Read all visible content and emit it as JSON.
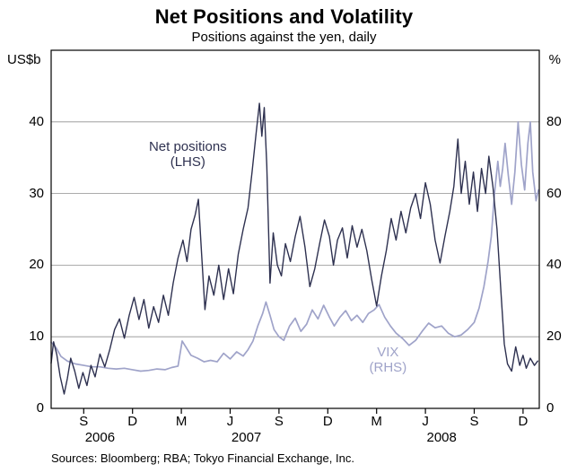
{
  "title": "Net Positions and Volatility",
  "subtitle": "Positions against the yen, daily",
  "sources": "Sources: Bloomberg; RBA; Tokyo Financial Exchange, Inc.",
  "colors": {
    "net_positions": "#2e3150",
    "vix": "#9fa3c9",
    "grid": "#909090",
    "frame": "#000000",
    "text": "#000000"
  },
  "chart_data": {
    "type": "line",
    "title": "Net Positions and Volatility",
    "subtitle": "Positions against the yen, daily",
    "x_axis": {
      "xlim": [
        0,
        30
      ],
      "note": "months since July 2006, daily data",
      "ticks": [
        {
          "x": 2,
          "label": "S"
        },
        {
          "x": 5,
          "label": "D"
        },
        {
          "x": 8,
          "label": "M"
        },
        {
          "x": 11,
          "label": "J"
        },
        {
          "x": 14,
          "label": "S"
        },
        {
          "x": 17,
          "label": "D"
        },
        {
          "x": 20,
          "label": "M"
        },
        {
          "x": 23,
          "label": "J"
        },
        {
          "x": 26,
          "label": "S"
        },
        {
          "x": 29,
          "label": "D"
        }
      ],
      "year_labels": [
        {
          "x": 3,
          "label": "2006"
        },
        {
          "x": 12,
          "label": "2007"
        },
        {
          "x": 24,
          "label": "2008"
        }
      ]
    },
    "left_axis": {
      "unit": "US$b",
      "ticks": [
        0,
        10,
        20,
        30,
        40
      ],
      "max": 50
    },
    "right_axis": {
      "unit": "%",
      "ticks": [
        0,
        20,
        40,
        60,
        80
      ],
      "max": 100
    },
    "gridlines": [
      10,
      20,
      30,
      40
    ],
    "legend_position": "in-plot annotations",
    "annotations": [
      {
        "lines": [
          "Net positions",
          "(LHS)"
        ],
        "x": 8.4,
        "y_left": 35.5,
        "color_key": "net_positions"
      },
      {
        "lines": [
          "VIX",
          "(RHS)"
        ],
        "x": 20.7,
        "y_left": 6.8,
        "color_key": "vix"
      }
    ],
    "series": [
      {
        "name": "Net positions (LHS)",
        "axis": "left",
        "color_key": "net_positions",
        "width": 1.4,
        "points": [
          [
            0,
            6.3
          ],
          [
            0.15,
            9.3
          ],
          [
            0.35,
            7.5
          ],
          [
            0.55,
            4.5
          ],
          [
            0.8,
            2.0
          ],
          [
            1.0,
            4.2
          ],
          [
            1.2,
            7.0
          ],
          [
            1.45,
            5.2
          ],
          [
            1.7,
            2.8
          ],
          [
            1.95,
            5.0
          ],
          [
            2.2,
            3.2
          ],
          [
            2.45,
            6.0
          ],
          [
            2.7,
            4.4
          ],
          [
            3.0,
            7.6
          ],
          [
            3.3,
            5.8
          ],
          [
            3.6,
            8.2
          ],
          [
            3.9,
            11.0
          ],
          [
            4.2,
            12.5
          ],
          [
            4.5,
            9.8
          ],
          [
            4.8,
            13.0
          ],
          [
            5.1,
            15.5
          ],
          [
            5.4,
            12.4
          ],
          [
            5.7,
            15.2
          ],
          [
            6.0,
            11.2
          ],
          [
            6.3,
            14.2
          ],
          [
            6.6,
            12.0
          ],
          [
            6.9,
            15.8
          ],
          [
            7.2,
            13.0
          ],
          [
            7.5,
            17.5
          ],
          [
            7.8,
            21.0
          ],
          [
            8.1,
            23.5
          ],
          [
            8.35,
            20.5
          ],
          [
            8.6,
            25.0
          ],
          [
            8.85,
            27.0
          ],
          [
            9.05,
            29.2
          ],
          [
            9.25,
            21.5
          ],
          [
            9.45,
            13.8
          ],
          [
            9.7,
            18.5
          ],
          [
            10.0,
            15.8
          ],
          [
            10.3,
            20.0
          ],
          [
            10.6,
            15.2
          ],
          [
            10.9,
            19.5
          ],
          [
            11.2,
            16.0
          ],
          [
            11.5,
            21.5
          ],
          [
            11.8,
            25.0
          ],
          [
            12.1,
            28.0
          ],
          [
            12.35,
            33.0
          ],
          [
            12.6,
            38.5
          ],
          [
            12.8,
            42.6
          ],
          [
            12.95,
            38.0
          ],
          [
            13.1,
            42.0
          ],
          [
            13.25,
            34.0
          ],
          [
            13.45,
            17.5
          ],
          [
            13.65,
            24.5
          ],
          [
            13.9,
            20.0
          ],
          [
            14.15,
            18.5
          ],
          [
            14.4,
            23.0
          ],
          [
            14.7,
            20.5
          ],
          [
            15.0,
            24.0
          ],
          [
            15.3,
            26.8
          ],
          [
            15.6,
            22.5
          ],
          [
            15.9,
            17.0
          ],
          [
            16.2,
            19.5
          ],
          [
            16.5,
            23.0
          ],
          [
            16.8,
            26.3
          ],
          [
            17.1,
            24.0
          ],
          [
            17.35,
            20.0
          ],
          [
            17.6,
            23.5
          ],
          [
            17.9,
            25.2
          ],
          [
            18.2,
            21.0
          ],
          [
            18.5,
            25.5
          ],
          [
            18.8,
            22.5
          ],
          [
            19.1,
            25.0
          ],
          [
            19.4,
            22.0
          ],
          [
            19.7,
            18.0
          ],
          [
            20.0,
            14.3
          ],
          [
            20.3,
            18.5
          ],
          [
            20.6,
            22.0
          ],
          [
            20.9,
            26.5
          ],
          [
            21.2,
            23.5
          ],
          [
            21.5,
            27.5
          ],
          [
            21.8,
            24.5
          ],
          [
            22.1,
            28.0
          ],
          [
            22.4,
            30.0
          ],
          [
            22.7,
            26.5
          ],
          [
            23.0,
            31.5
          ],
          [
            23.3,
            28.5
          ],
          [
            23.6,
            23.5
          ],
          [
            23.9,
            20.3
          ],
          [
            24.2,
            24.0
          ],
          [
            24.5,
            27.5
          ],
          [
            24.75,
            31.0
          ],
          [
            25.0,
            37.6
          ],
          [
            25.2,
            30.0
          ],
          [
            25.45,
            34.5
          ],
          [
            25.7,
            28.5
          ],
          [
            25.95,
            33.0
          ],
          [
            26.2,
            27.5
          ],
          [
            26.45,
            33.5
          ],
          [
            26.7,
            30.0
          ],
          [
            26.9,
            35.2
          ],
          [
            27.15,
            31.0
          ],
          [
            27.4,
            25.0
          ],
          [
            27.65,
            16.0
          ],
          [
            27.85,
            9.0
          ],
          [
            28.05,
            6.2
          ],
          [
            28.3,
            5.2
          ],
          [
            28.55,
            8.6
          ],
          [
            28.8,
            6.0
          ],
          [
            29.0,
            7.4
          ],
          [
            29.2,
            5.6
          ],
          [
            29.45,
            7.0
          ],
          [
            29.7,
            6.0
          ],
          [
            29.9,
            6.6
          ]
        ]
      },
      {
        "name": "VIX (RHS)",
        "axis": "right",
        "color_key": "vix",
        "width": 1.7,
        "points": [
          [
            0,
            18.5
          ],
          [
            0.3,
            17.0
          ],
          [
            0.6,
            14.5
          ],
          [
            1.0,
            13.2
          ],
          [
            1.5,
            12.4
          ],
          [
            2.0,
            12.0
          ],
          [
            2.5,
            11.6
          ],
          [
            3.0,
            11.6
          ],
          [
            3.5,
            11.2
          ],
          [
            4.0,
            11.0
          ],
          [
            4.5,
            11.2
          ],
          [
            5.0,
            10.8
          ],
          [
            5.5,
            10.4
          ],
          [
            6.0,
            10.6
          ],
          [
            6.5,
            11.0
          ],
          [
            7.0,
            10.8
          ],
          [
            7.4,
            11.4
          ],
          [
            7.8,
            11.8
          ],
          [
            8.05,
            18.8
          ],
          [
            8.3,
            17.0
          ],
          [
            8.6,
            14.8
          ],
          [
            9.0,
            14.0
          ],
          [
            9.4,
            13.0
          ],
          [
            9.8,
            13.4
          ],
          [
            10.2,
            13.0
          ],
          [
            10.6,
            15.4
          ],
          [
            11.0,
            13.8
          ],
          [
            11.4,
            15.8
          ],
          [
            11.8,
            14.6
          ],
          [
            12.1,
            16.4
          ],
          [
            12.4,
            18.8
          ],
          [
            12.7,
            23.0
          ],
          [
            13.0,
            26.5
          ],
          [
            13.2,
            29.7
          ],
          [
            13.45,
            26.0
          ],
          [
            13.7,
            22.0
          ],
          [
            14.0,
            20.0
          ],
          [
            14.3,
            19.0
          ],
          [
            14.65,
            23.0
          ],
          [
            15.0,
            25.2
          ],
          [
            15.35,
            21.5
          ],
          [
            15.7,
            23.5
          ],
          [
            16.05,
            27.5
          ],
          [
            16.4,
            25.0
          ],
          [
            16.75,
            28.8
          ],
          [
            17.1,
            25.5
          ],
          [
            17.4,
            23.0
          ],
          [
            17.75,
            25.5
          ],
          [
            18.1,
            27.3
          ],
          [
            18.45,
            24.5
          ],
          [
            18.8,
            26.0
          ],
          [
            19.15,
            24.0
          ],
          [
            19.5,
            26.5
          ],
          [
            19.85,
            27.5
          ],
          [
            20.15,
            29.0
          ],
          [
            20.5,
            25.5
          ],
          [
            20.85,
            23.0
          ],
          [
            21.2,
            21.0
          ],
          [
            21.6,
            19.5
          ],
          [
            22.0,
            17.6
          ],
          [
            22.4,
            19.0
          ],
          [
            22.8,
            21.5
          ],
          [
            23.2,
            23.8
          ],
          [
            23.6,
            22.5
          ],
          [
            24.0,
            23.0
          ],
          [
            24.4,
            21.0
          ],
          [
            24.8,
            20.0
          ],
          [
            25.2,
            20.5
          ],
          [
            25.6,
            22.0
          ],
          [
            26.0,
            24.0
          ],
          [
            26.3,
            28.0
          ],
          [
            26.6,
            34.0
          ],
          [
            26.85,
            41.0
          ],
          [
            27.05,
            48.0
          ],
          [
            27.25,
            60.0
          ],
          [
            27.45,
            69.0
          ],
          [
            27.6,
            62.0
          ],
          [
            27.75,
            67.0
          ],
          [
            27.9,
            74.0
          ],
          [
            28.1,
            65.0
          ],
          [
            28.3,
            57.0
          ],
          [
            28.5,
            66.0
          ],
          [
            28.7,
            80.0
          ],
          [
            28.9,
            68.0
          ],
          [
            29.1,
            61.0
          ],
          [
            29.3,
            74.0
          ],
          [
            29.45,
            80.0
          ],
          [
            29.6,
            66.0
          ],
          [
            29.8,
            58.0
          ],
          [
            29.95,
            61.0
          ]
        ]
      }
    ]
  }
}
